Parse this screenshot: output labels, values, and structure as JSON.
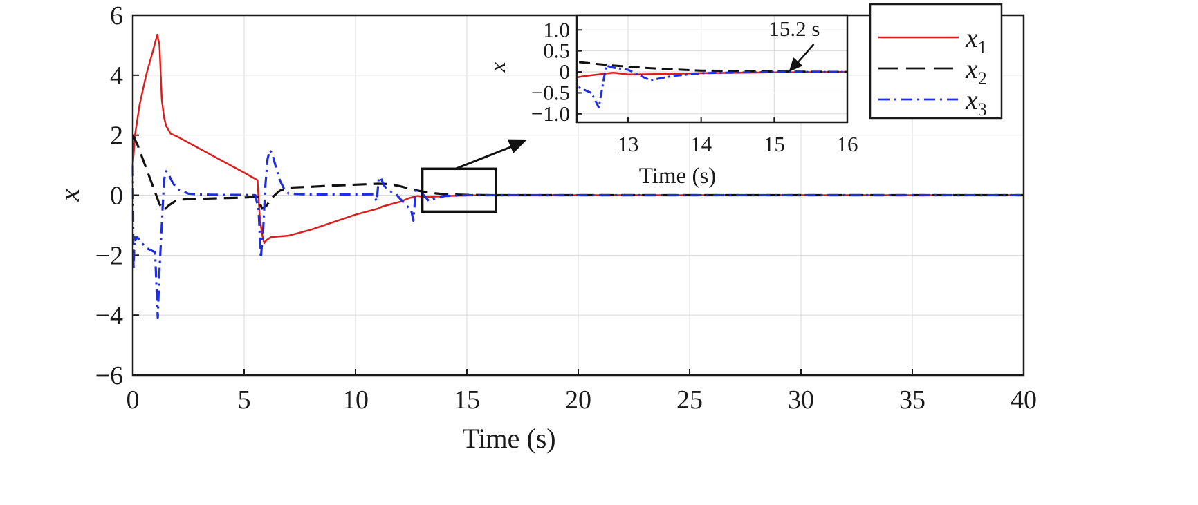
{
  "chart_data": {
    "type": "line",
    "xlabel": "Time (s)",
    "ylabel": "x",
    "xlim": [
      0,
      40
    ],
    "ylim": [
      -6,
      6
    ],
    "xticks": [
      0,
      5,
      10,
      15,
      20,
      25,
      30,
      35,
      40
    ],
    "yticks": [
      -6,
      -4,
      -2,
      0,
      2,
      4,
      6
    ],
    "ytick_labels": [
      "−6",
      "−4",
      "−2",
      "0",
      "2",
      "4",
      "6"
    ],
    "grid": true,
    "legend": {
      "placement": "top-right"
    },
    "series": [
      {
        "name": "x",
        "subscript": "1",
        "color": "#dd1c1c",
        "style": "solid",
        "x": [
          0,
          0.1,
          0.3,
          0.6,
          0.9,
          1.1,
          1.2,
          1.3,
          1.4,
          1.5,
          1.7,
          2.0,
          3.0,
          4.0,
          5.0,
          5.6,
          5.7,
          5.8,
          5.9,
          6.0,
          6.2,
          6.5,
          7.0,
          8.0,
          9.0,
          10.0,
          11.0,
          11.2,
          11.6,
          12.0,
          12.4,
          12.8,
          13.0,
          13.5,
          14.0,
          15.0,
          16.0,
          20.0,
          30.0,
          40.0
        ],
        "y": [
          1.0,
          2.0,
          3.0,
          4.0,
          4.8,
          5.35,
          5.0,
          3.2,
          2.6,
          2.3,
          2.05,
          1.95,
          1.55,
          1.15,
          0.75,
          0.5,
          -0.7,
          -1.3,
          -1.6,
          -1.5,
          -1.4,
          -1.38,
          -1.35,
          -1.15,
          -0.9,
          -0.65,
          -0.45,
          -0.38,
          -0.3,
          -0.22,
          -0.1,
          -0.02,
          -0.06,
          -0.05,
          -0.03,
          -0.01,
          0,
          0,
          0,
          0
        ]
      },
      {
        "name": "x",
        "subscript": "2",
        "color": "#111111",
        "style": "dashed",
        "x": [
          0,
          0.2,
          0.5,
          0.9,
          1.2,
          1.4,
          1.6,
          2.0,
          3.0,
          4.0,
          5.0,
          5.6,
          5.8,
          6.0,
          6.3,
          6.6,
          7.0,
          8.0,
          9.0,
          10.0,
          11.0,
          11.5,
          12.0,
          12.4,
          12.8,
          13.2,
          13.6,
          14.0,
          14.5,
          15.0,
          16.0,
          20.0,
          40.0
        ],
        "y": [
          2.0,
          1.7,
          1.1,
          0.3,
          -0.3,
          -0.5,
          -0.35,
          -0.15,
          -0.12,
          -0.1,
          -0.08,
          -0.05,
          -0.45,
          -0.35,
          -0.05,
          0.15,
          0.25,
          0.28,
          0.32,
          0.35,
          0.38,
          0.37,
          0.3,
          0.22,
          0.15,
          0.1,
          0.06,
          0.03,
          0.02,
          0.01,
          0,
          0,
          0
        ]
      },
      {
        "name": "x",
        "subscript": "3",
        "color": "#1f2ee0",
        "style": "dashdot",
        "x": [
          0,
          0.03,
          0.08,
          0.12,
          0.2,
          0.4,
          0.7,
          1.0,
          1.12,
          1.2,
          1.3,
          1.4,
          1.5,
          1.6,
          1.8,
          2.0,
          2.5,
          3.0,
          4.0,
          5.0,
          5.5,
          5.65,
          5.75,
          5.85,
          5.95,
          6.05,
          6.15,
          6.25,
          6.4,
          6.6,
          6.8,
          7.0,
          8.0,
          9.0,
          10.0,
          10.8,
          10.95,
          11.05,
          11.15,
          11.3,
          11.5,
          11.8,
          12.1,
          12.5,
          12.6,
          12.7,
          12.8,
          13.0,
          13.3,
          13.6,
          14.0,
          15.0,
          20.0,
          40.0
        ],
        "y": [
          1.0,
          -2.5,
          -1.4,
          -1.5,
          -1.4,
          -1.6,
          -1.8,
          -1.9,
          -4.1,
          -2.5,
          -1.0,
          0.5,
          0.8,
          0.7,
          0.4,
          0.2,
          0.05,
          0.02,
          0.01,
          0.01,
          0.0,
          -0.5,
          -2.1,
          -1.2,
          0.3,
          1.2,
          1.5,
          1.4,
          1.0,
          0.5,
          0.2,
          0.05,
          0.02,
          0.02,
          0.02,
          0.03,
          -0.2,
          0.6,
          0.55,
          0.3,
          0.15,
          0.05,
          -0.2,
          -0.5,
          -0.85,
          0.15,
          0.1,
          0.05,
          -0.2,
          -0.1,
          -0.03,
          0,
          0,
          0
        ]
      }
    ],
    "inset": {
      "xlabel": "Time (s)",
      "ylabel": "x",
      "xlim": [
        12.3,
        16
      ],
      "ylim": [
        -1.2,
        1.35
      ],
      "xticks": [
        13,
        14,
        15,
        16
      ],
      "yticks": [
        -1.0,
        -0.5,
        0,
        0.5,
        1.0
      ],
      "ytick_labels": [
        "−1.0",
        "−0.5",
        "0",
        "0.5",
        "1.0"
      ],
      "zoom_box": {
        "x": [
          13.0,
          16.3
        ],
        "y": [
          -0.55,
          0.88
        ]
      },
      "annotation": {
        "text": "15.2 s",
        "x": 15.2,
        "y": 0
      }
    }
  }
}
